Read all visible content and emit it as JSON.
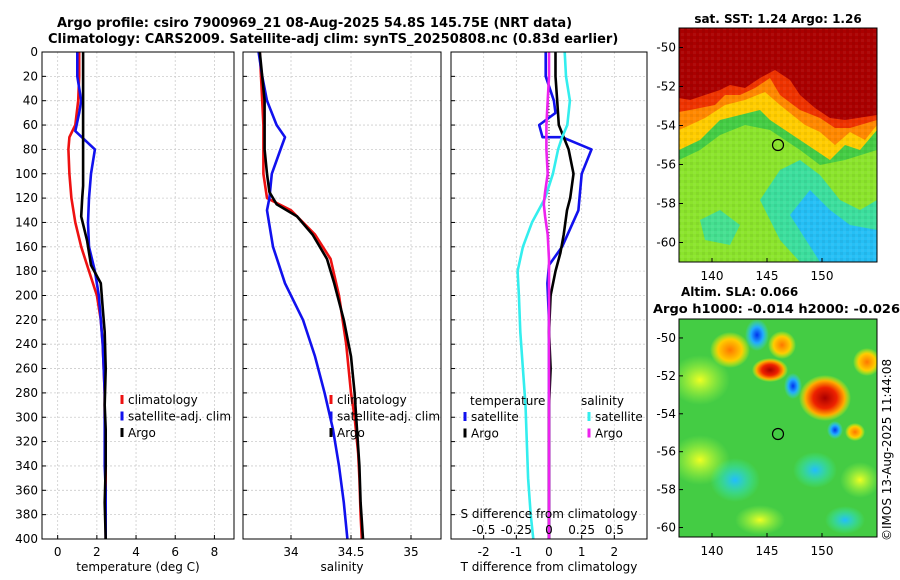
{
  "header": {
    "line1": "Argo profile: csiro 7900969_21 08-Aug-2025 54.8S 145.75E (NRT data)",
    "line2": "Climatology: CARS2009. Satellite-adj clim: synTS_20250808.nc (0.83d earlier)"
  },
  "credit": "©IMOS 13-Aug-2025 11:44:08",
  "colors": {
    "climatology": "#ee1111",
    "satellite": "#1111ee",
    "argo": "#000000",
    "satellite_salinity": "#33eeee",
    "argo_salinity": "#ee22ee"
  },
  "chart_data": [
    {
      "type": "line",
      "id": "temperature",
      "xlabel": "temperature (deg C)",
      "ylabel": "",
      "xlim": [
        -0.8,
        9
      ],
      "ylim": [
        0,
        400
      ],
      "xticks": [
        0,
        2,
        4,
        6,
        8
      ],
      "xtick_labels": [
        "0",
        "2",
        "4",
        "6",
        "8"
      ],
      "yticks": [
        0,
        20,
        40,
        60,
        80,
        100,
        120,
        140,
        160,
        180,
        200,
        220,
        240,
        260,
        280,
        300,
        320,
        340,
        360,
        380,
        400
      ],
      "ytick_labels": [
        "0",
        "20",
        "40",
        "60",
        "80",
        "100",
        "120",
        "140",
        "160",
        "180",
        "200",
        "220",
        "240",
        "260",
        "280",
        "300",
        "320",
        "340",
        "360",
        "380",
        "400"
      ],
      "legend": [
        "climatology",
        "satellite-adj. clim",
        "Argo"
      ],
      "legend_placement": "lower-right",
      "series": [
        {
          "name": "climatology",
          "color_key": "climatology",
          "x": [
            1.1,
            1.1,
            1.05,
            0.9,
            0.6,
            0.55,
            0.6,
            0.7,
            0.9,
            1.2,
            1.6,
            2.0,
            2.2,
            2.3,
            2.35,
            2.4,
            2.4,
            2.45,
            2.45,
            2.45,
            2.45
          ],
          "y": [
            0,
            20,
            40,
            60,
            70,
            80,
            100,
            120,
            140,
            160,
            180,
            200,
            220,
            240,
            260,
            280,
            300,
            320,
            340,
            360,
            400
          ]
        },
        {
          "name": "satellite-adj. clim",
          "color_key": "satellite",
          "x": [
            1.0,
            1.0,
            1.2,
            1.1,
            0.9,
            1.9,
            1.7,
            1.6,
            1.55,
            1.6,
            1.9,
            2.1,
            2.2,
            2.3,
            2.35,
            2.4,
            2.4,
            2.4,
            2.45,
            2.45
          ],
          "y": [
            0,
            20,
            40,
            50,
            65,
            80,
            100,
            120,
            140,
            160,
            180,
            200,
            220,
            240,
            260,
            280,
            300,
            340,
            360,
            400
          ]
        },
        {
          "name": "Argo",
          "color_key": "argo",
          "x": [
            1.3,
            1.3,
            1.3,
            1.3,
            1.3,
            1.3,
            1.3,
            1.25,
            1.2,
            1.5,
            1.7,
            2.2,
            2.3,
            2.4,
            2.45,
            2.4,
            2.45,
            2.45,
            2.4,
            2.45
          ],
          "y": [
            0,
            20,
            40,
            60,
            80,
            100,
            110,
            120,
            135,
            155,
            175,
            190,
            210,
            230,
            260,
            290,
            310,
            340,
            370,
            400
          ]
        }
      ]
    },
    {
      "type": "line",
      "id": "salinity",
      "xlabel": "salinity",
      "ylabel": "",
      "xlim": [
        33.6,
        35.25
      ],
      "ylim": [
        0,
        400
      ],
      "xticks": [
        34,
        34.5,
        35
      ],
      "xtick_labels": [
        "34",
        "34.5",
        "35"
      ],
      "legend": [
        "climatology",
        "satellite-adj. clim",
        "Argo"
      ],
      "legend_placement": "lower-right",
      "series": [
        {
          "name": "climatology",
          "color_key": "climatology",
          "x": [
            33.74,
            33.75,
            33.76,
            33.77,
            33.77,
            33.77,
            33.8,
            34.0,
            34.2,
            34.33,
            34.4,
            34.46,
            34.5,
            34.53,
            34.56,
            34.57,
            34.58,
            34.59
          ],
          "y": [
            0,
            20,
            40,
            60,
            80,
            100,
            120,
            130,
            150,
            170,
            200,
            240,
            280,
            300,
            330,
            350,
            380,
            400
          ]
        },
        {
          "name": "satellite-adj. clim",
          "color_key": "satellite",
          "x": [
            33.73,
            33.76,
            33.8,
            33.88,
            33.95,
            33.92,
            33.84,
            33.82,
            33.8,
            33.85,
            33.95,
            34.1,
            34.2,
            34.28,
            34.35,
            34.4,
            34.44,
            34.47
          ],
          "y": [
            0,
            20,
            40,
            60,
            70,
            78,
            100,
            120,
            130,
            160,
            190,
            220,
            250,
            280,
            310,
            340,
            370,
            400
          ]
        },
        {
          "name": "Argo",
          "color_key": "argo",
          "x": [
            33.74,
            33.76,
            33.78,
            33.78,
            33.78,
            33.8,
            33.82,
            33.88,
            34.05,
            34.18,
            34.3,
            34.36,
            34.44,
            34.5,
            34.53,
            34.55,
            34.57,
            34.58,
            34.6
          ],
          "y": [
            0,
            20,
            40,
            60,
            80,
            100,
            115,
            125,
            135,
            150,
            170,
            190,
            220,
            250,
            280,
            310,
            340,
            370,
            400
          ]
        }
      ]
    },
    {
      "type": "line",
      "id": "difference",
      "xlabel": "T difference from climatology",
      "x2label": "S difference from climatology",
      "xlim": [
        -3,
        3
      ],
      "ylim": [
        0,
        400
      ],
      "xticks": [
        -2,
        -1,
        0,
        1,
        2
      ],
      "xtick_labels": [
        "-2",
        "-1",
        "0",
        "1",
        "2"
      ],
      "x2ticks": [
        -0.5,
        -0.25,
        0,
        0.25,
        0.5
      ],
      "x2tick_labels": [
        "-0.5",
        "-0.25",
        "0",
        "0.25",
        "0.5"
      ],
      "legend_temperature_heading": "temperature",
      "legend_salinity_heading": "salinity",
      "legend_temperature": [
        "satellite",
        "Argo"
      ],
      "legend_salinity": [
        "satellite",
        "Argo"
      ],
      "series": [
        {
          "name": "T satellite",
          "color_key": "satellite",
          "x": [
            -0.1,
            -0.1,
            0.15,
            0.2,
            -0.3,
            -0.2,
            0.4,
            1.3,
            1.0,
            0.9,
            0.4,
            0.0,
            -0.05,
            0.0,
            0.0,
            0.0,
            0.0,
            0.0,
            0.0,
            0.0
          ],
          "y": [
            0,
            20,
            40,
            50,
            60,
            70,
            70,
            80,
            100,
            130,
            160,
            175,
            190,
            220,
            260,
            300,
            330,
            360,
            380,
            400
          ]
        },
        {
          "name": "T Argo",
          "color_key": "argo",
          "x": [
            0.2,
            0.2,
            0.25,
            0.3,
            0.6,
            0.75,
            0.65,
            0.55,
            0.45,
            0.35,
            0.2,
            0.05,
            0.0,
            0.05,
            0.0,
            0.0,
            0.0,
            0.0,
            0.0
          ],
          "y": [
            0,
            20,
            40,
            60,
            80,
            100,
            120,
            130,
            150,
            165,
            180,
            200,
            230,
            260,
            290,
            320,
            350,
            380,
            400
          ]
        },
        {
          "name": "S satellite",
          "color_key": "satellite_salinity",
          "x": [
            0.12,
            0.13,
            0.16,
            0.14,
            0.1,
            0.07,
            0.03,
            -0.03,
            -0.13,
            -0.2,
            -0.24,
            -0.23,
            -0.22,
            -0.2,
            -0.18,
            -0.17,
            -0.16,
            -0.14,
            -0.12
          ],
          "y": [
            0,
            20,
            40,
            60,
            70,
            80,
            100,
            120,
            140,
            160,
            180,
            200,
            230,
            260,
            290,
            320,
            350,
            380,
            400
          ]
        },
        {
          "name": "S Argo",
          "color_key": "argo_salinity",
          "x": [
            0.0,
            0.0,
            -0.01,
            -0.02,
            -0.02,
            -0.01,
            -0.03,
            -0.04,
            -0.03,
            -0.01,
            0.0,
            0.0,
            0.0,
            0.0,
            0.0,
            0.0
          ],
          "y": [
            0,
            20,
            40,
            60,
            80,
            100,
            115,
            125,
            135,
            150,
            170,
            200,
            250,
            300,
            350,
            400
          ]
        }
      ]
    },
    {
      "type": "heatmap",
      "id": "sst_map",
      "title": "sat. SST: 1.24 Argo: 1.26",
      "xlim": [
        137,
        155
      ],
      "ylim": [
        -61,
        -49
      ],
      "xticks": [
        140,
        145,
        150
      ],
      "xtick_labels": [
        "140",
        "145",
        "150"
      ],
      "yticks": [
        -50,
        -52,
        -54,
        -56,
        -58,
        -60
      ],
      "ytick_labels": [
        "-50",
        "-52",
        "-54",
        "-56",
        "-58",
        "-60"
      ],
      "marker": {
        "lon": 145.75,
        "lat": -54.8
      }
    },
    {
      "type": "heatmap",
      "id": "sla_map",
      "title": "Altim. SLA: 0.066",
      "subtitle": "Argo h1000: -0.014 h2000: -0.026",
      "xlim": [
        137,
        155
      ],
      "ylim": [
        -60.5,
        -49
      ],
      "xticks": [
        140,
        145,
        150
      ],
      "xtick_labels": [
        "140",
        "145",
        "150"
      ],
      "yticks": [
        -50,
        -52,
        -54,
        -56,
        -58,
        -60
      ],
      "ytick_labels": [
        "-50",
        "-52",
        "-54",
        "-56",
        "-58",
        "-60"
      ],
      "marker": {
        "lon": 145.75,
        "lat": -54.8
      }
    }
  ]
}
